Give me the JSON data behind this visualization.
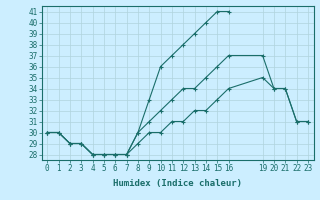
{
  "xlabel": "Humidex (Indice chaleur)",
  "bg_color": "#cceeff",
  "grid_color": "#b0d4dd",
  "line_color": "#1a6e6a",
  "xlim": [
    -0.5,
    23.5
  ],
  "ylim": [
    27.5,
    41.5
  ],
  "yticks": [
    28,
    29,
    30,
    31,
    32,
    33,
    34,
    35,
    36,
    37,
    38,
    39,
    40,
    41
  ],
  "xtick_positions": [
    0,
    1,
    2,
    3,
    4,
    5,
    6,
    7,
    8,
    9,
    10,
    11,
    12,
    13,
    14,
    15,
    16,
    19,
    20,
    21,
    22,
    23
  ],
  "xtick_labels": [
    "0",
    "1",
    "2",
    "3",
    "4",
    "5",
    "6",
    "7",
    "8",
    "9",
    "10",
    "11",
    "12",
    "13",
    "14",
    "15",
    "16",
    "19",
    "20",
    "21",
    "22",
    "23"
  ],
  "lines": [
    {
      "x": [
        0,
        1,
        2,
        3,
        4,
        5,
        6,
        7,
        8,
        9,
        10,
        11,
        12,
        13,
        14,
        15,
        16
      ],
      "y": [
        30,
        30,
        29,
        29,
        28,
        28,
        28,
        28,
        30,
        33,
        36,
        37,
        38,
        39,
        40,
        41,
        41
      ]
    },
    {
      "x": [
        0,
        1,
        2,
        3,
        4,
        5,
        6,
        7,
        8,
        9,
        10,
        11,
        12,
        13,
        14,
        15,
        16,
        19,
        20,
        21,
        22,
        23
      ],
      "y": [
        30,
        30,
        29,
        29,
        28,
        28,
        28,
        28,
        30,
        31,
        32,
        33,
        34,
        34,
        35,
        36,
        37,
        37,
        34,
        34,
        31,
        31
      ]
    },
    {
      "x": [
        0,
        1,
        2,
        3,
        4,
        5,
        6,
        7,
        8,
        9,
        10,
        11,
        12,
        13,
        14,
        15,
        16,
        19,
        20,
        21,
        22,
        23
      ],
      "y": [
        30,
        30,
        29,
        29,
        28,
        28,
        28,
        28,
        29,
        30,
        30,
        31,
        31,
        32,
        32,
        33,
        34,
        35,
        34,
        34,
        31,
        31
      ]
    }
  ]
}
